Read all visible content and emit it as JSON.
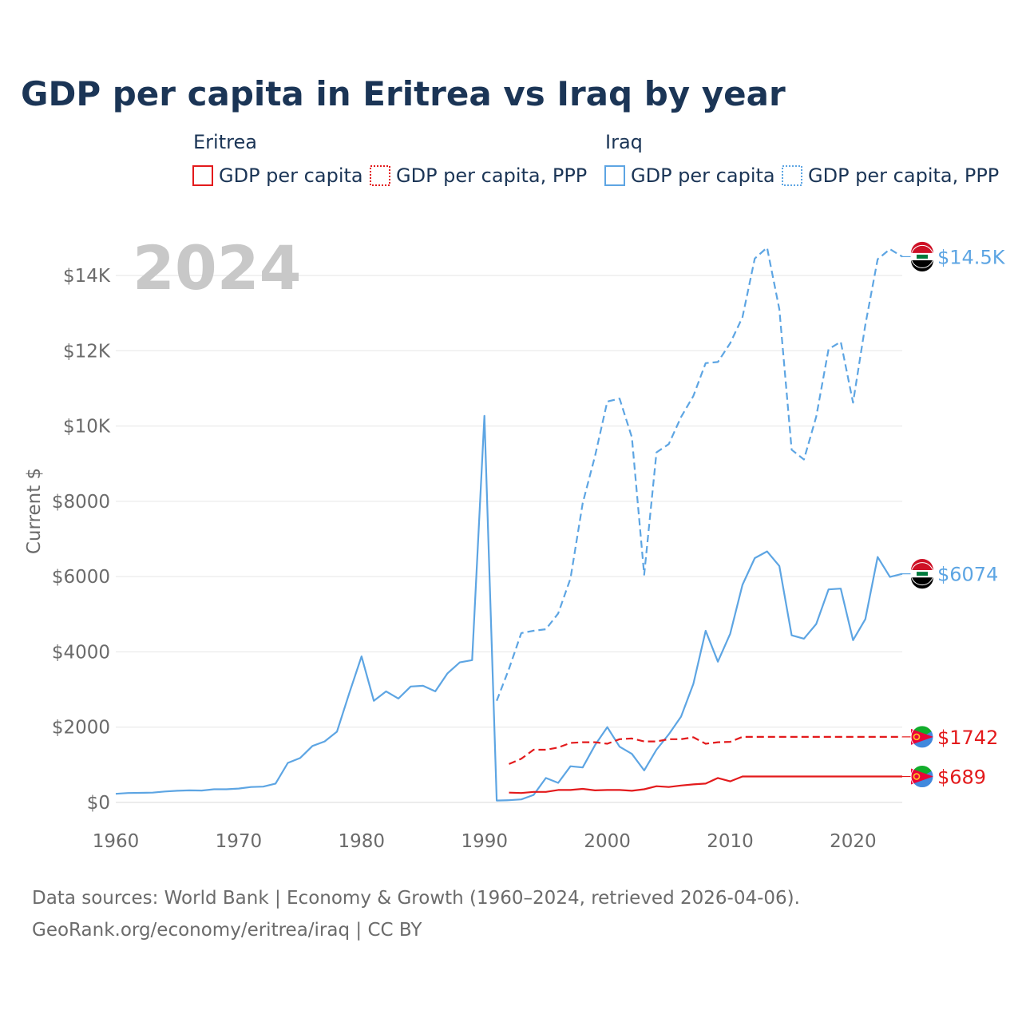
{
  "chart_data": {
    "type": "line",
    "title": "GDP per capita in Eritrea vs Iraq by year",
    "ylabel": "Current $",
    "xlabel": "",
    "year_label": "2024",
    "xlim": [
      1960,
      2024
    ],
    "ylim": [
      0,
      15000
    ],
    "x_ticks": [
      1960,
      1970,
      1980,
      1990,
      2000,
      2010,
      2020
    ],
    "y_ticks": [
      0,
      2000,
      4000,
      6000,
      8000,
      10000,
      12000,
      14000
    ],
    "y_tick_labels": [
      "$0",
      "$2000",
      "$4000",
      "$6000",
      "$8000",
      "$10K",
      "$12K",
      "$14K"
    ],
    "grid": true,
    "legend": {
      "placement": "top",
      "groups": [
        {
          "country": "Eritrea",
          "color": "#e31a1c",
          "entries": [
            "GDP per capita",
            "GDP per capita, PPP"
          ]
        },
        {
          "country": "Iraq",
          "color": "#5da5e3",
          "entries": [
            "GDP per capita",
            "GDP per capita, PPP"
          ]
        }
      ]
    },
    "series": [
      {
        "name": "Iraq GDP per capita",
        "country": "Iraq",
        "color": "#5da5e3",
        "dash": "solid",
        "end_label": "$6074",
        "x": [
          1960,
          1961,
          1962,
          1963,
          1964,
          1965,
          1966,
          1967,
          1968,
          1969,
          1970,
          1971,
          1972,
          1973,
          1974,
          1975,
          1976,
          1977,
          1978,
          1979,
          1980,
          1981,
          1982,
          1983,
          1984,
          1985,
          1986,
          1987,
          1988,
          1989,
          1990,
          1991,
          1992,
          1993,
          1994,
          1995,
          1996,
          1997,
          1998,
          1999,
          2000,
          2001,
          2002,
          2003,
          2004,
          2005,
          2006,
          2007,
          2008,
          2009,
          2010,
          2011,
          2012,
          2013,
          2014,
          2015,
          2016,
          2017,
          2018,
          2019,
          2020,
          2021,
          2022,
          2023,
          2024
        ],
        "values": [
          230,
          250,
          255,
          260,
          290,
          310,
          320,
          315,
          350,
          350,
          370,
          410,
          420,
          500,
          1050,
          1180,
          1500,
          1620,
          1880,
          2900,
          3880,
          2700,
          2950,
          2760,
          3080,
          3100,
          2950,
          3430,
          3720,
          3780,
          10270,
          50,
          60,
          80,
          200,
          650,
          520,
          960,
          930,
          1520,
          2000,
          1480,
          1290,
          850,
          1400,
          1810,
          2280,
          3150,
          4560,
          3740,
          4480,
          5780,
          6490,
          6670,
          6280,
          4440,
          4350,
          4740,
          5660,
          5680,
          4310,
          4870,
          6520,
          5990,
          6074
        ]
      },
      {
        "name": "Iraq GDP per capita, PPP",
        "country": "Iraq",
        "color": "#5da5e3",
        "dash": "dashed",
        "end_label": "$14.5K",
        "x": [
          1991,
          1992,
          1993,
          1994,
          1995,
          1996,
          1997,
          1998,
          1999,
          2000,
          2001,
          2002,
          2003,
          2004,
          2005,
          2006,
          2007,
          2008,
          2009,
          2010,
          2011,
          2012,
          2013,
          2014,
          2015,
          2016,
          2017,
          2018,
          2019,
          2020,
          2021,
          2022,
          2023,
          2024
        ],
        "values": [
          2700,
          3550,
          4500,
          4560,
          4600,
          5020,
          5950,
          7950,
          9200,
          10650,
          10730,
          9700,
          6050,
          9300,
          9520,
          10240,
          10800,
          11670,
          11700,
          12200,
          12890,
          14450,
          14740,
          13100,
          9370,
          9110,
          10250,
          12040,
          12240,
          10620,
          12690,
          14430,
          14700,
          14500
        ]
      },
      {
        "name": "Eritrea GDP per capita",
        "country": "Eritrea",
        "color": "#e31a1c",
        "dash": "solid",
        "end_label": "$689",
        "x": [
          1992,
          1993,
          1994,
          1995,
          1996,
          1997,
          1998,
          1999,
          2000,
          2001,
          2002,
          2003,
          2004,
          2005,
          2006,
          2007,
          2008,
          2009,
          2010,
          2011,
          2024
        ],
        "values": [
          260,
          250,
          280,
          280,
          330,
          330,
          360,
          320,
          330,
          330,
          310,
          350,
          430,
          410,
          450,
          480,
          500,
          650,
          560,
          689,
          689
        ]
      },
      {
        "name": "Eritrea GDP per capita, PPP",
        "country": "Eritrea",
        "color": "#e31a1c",
        "dash": "dashed",
        "end_label": "$1742",
        "x": [
          1992,
          1993,
          1994,
          1995,
          1996,
          1997,
          1998,
          1999,
          2000,
          2001,
          2002,
          2003,
          2004,
          2005,
          2006,
          2007,
          2008,
          2009,
          2010,
          2011,
          2024
        ],
        "values": [
          1020,
          1160,
          1400,
          1400,
          1460,
          1580,
          1600,
          1600,
          1560,
          1680,
          1700,
          1620,
          1620,
          1680,
          1680,
          1730,
          1560,
          1600,
          1610,
          1742,
          1742
        ]
      }
    ]
  },
  "footer": {
    "line1": "Data sources: World Bank | Economy & Growth (1960–2024, retrieved 2026-04-06).",
    "line2": "GeoRank.org/economy/eritrea/iraq | CC BY"
  }
}
